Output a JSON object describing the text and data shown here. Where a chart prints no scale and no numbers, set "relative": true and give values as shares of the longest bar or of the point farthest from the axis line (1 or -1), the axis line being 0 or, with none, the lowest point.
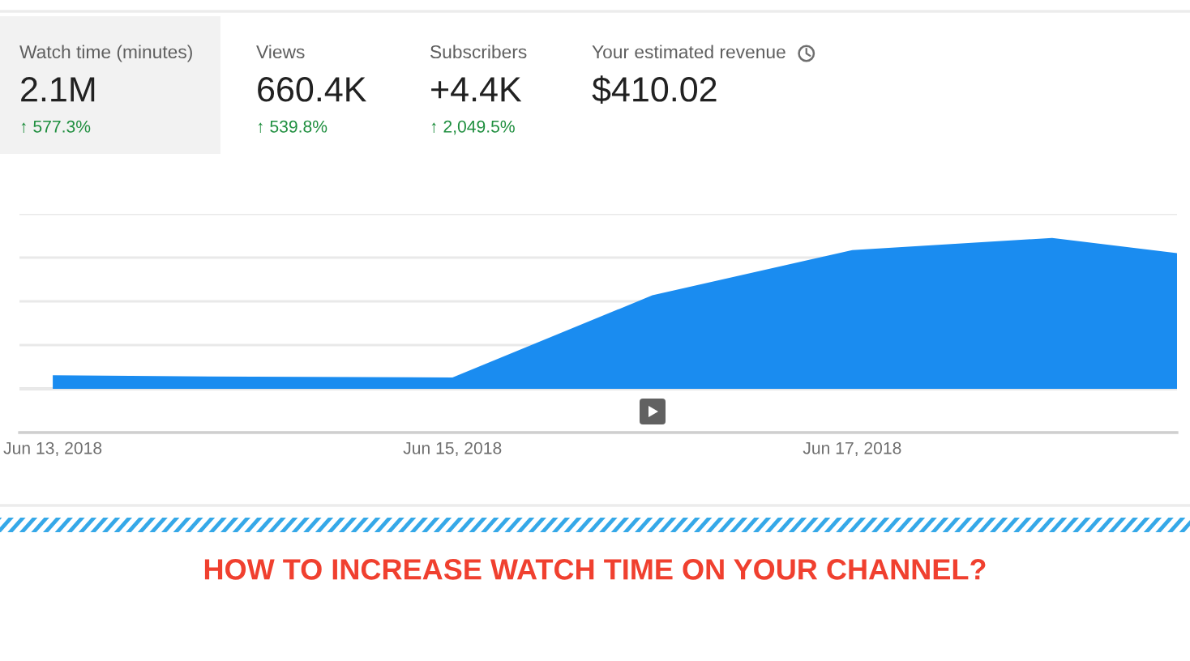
{
  "chart_data": [
    {
      "type": "other",
      "title": "Watch time (minutes)",
      "annotations": [
        "2.1M",
        "↑ 577.3%"
      ]
    },
    {
      "type": "other",
      "title": "Views",
      "annotations": [
        "660.4K",
        "↑ 539.8%"
      ]
    },
    {
      "type": "other",
      "title": "Subscribers",
      "annotations": [
        "+4.4K",
        "↑ 2,049.5%"
      ]
    },
    {
      "type": "other",
      "title": "Your estimated revenue",
      "annotations": [
        "$410.02"
      ]
    },
    {
      "type": "area",
      "title": "HOW TO INCREASE WATCH TIME ON YOUR CHANNEL?",
      "relative": true,
      "x": [
        "2018-06-13",
        "2018-06-14",
        "2018-06-15",
        "2018-06-16",
        "2018-06-17",
        "2018-06-18",
        "2018-06-18T15:00"
      ],
      "values": [
        0.09,
        0.08,
        0.075,
        0.62,
        0.92,
        1,
        0.9
      ],
      "color": "#1a8cf0",
      "xlim": [
        "2018-06-12T20:00",
        "2018-06-18T15:00"
      ],
      "xticks": [
        {
          "value": "2018-06-13",
          "label": "Jun 13, 2018"
        },
        {
          "value": "2018-06-15",
          "label": "Jun 15, 2018"
        },
        {
          "value": "2018-06-17",
          "label": "Jun 17, 2018"
        }
      ],
      "grid": "y"
    }
  ]
}
